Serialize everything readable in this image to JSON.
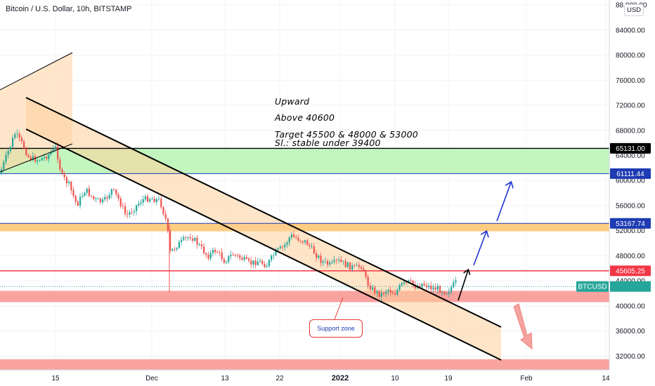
{
  "chart_data": {
    "type": "candlestick",
    "title": "Bitcoin / U.S. Dollar, 10h, BITSTAMP",
    "currency": "USD",
    "ylim": [
      29800,
      88800
    ],
    "y_ticks": [
      "32000.00",
      "36000.00",
      "40000.00",
      "44000.00",
      "48000.00",
      "52000.00",
      "56000.00",
      "60000.00",
      "64000.00",
      "68000.00",
      "72000.00",
      "76000.00",
      "80000.00",
      "84000.00",
      "88 000.00"
    ],
    "x_ticks": [
      "15",
      "Dec",
      "13",
      "22",
      "2022",
      "10",
      "19",
      "Feb",
      "14"
    ],
    "price_labels": [
      {
        "value": 65131.0,
        "text": "65131.00",
        "color": "#000000"
      },
      {
        "value": 61111.44,
        "text": "61111.44",
        "color": "#1e3bb3"
      },
      {
        "value": 53167.74,
        "text": "53167.74",
        "color": "#1e3bb3"
      },
      {
        "value": 45605.25,
        "text": "45605.25",
        "color": "#f23645"
      },
      {
        "value": 43100,
        "text": "BTCUSD",
        "color": "#26a69a"
      }
    ],
    "zones": [
      {
        "name": "green-zone",
        "from": 61111.44,
        "to": 65131.0,
        "color": "#b9f5b4"
      },
      {
        "name": "orange-zone",
        "from": 51900,
        "to": 53167.74,
        "color": "#ffc46b"
      },
      {
        "name": "support-red-zone",
        "from": 40600,
        "to": 42400,
        "color": "#f8938e"
      },
      {
        "name": "bottom-red-zone",
        "from": 29800,
        "to": 31500,
        "color": "#f8938e"
      }
    ],
    "annotations": {
      "lines": [
        "Upward",
        "Above 40600",
        "Target 45500 & 48000 & 53000",
        "Sl.: stable under 39400"
      ],
      "support_label": "Support zone"
    }
  }
}
